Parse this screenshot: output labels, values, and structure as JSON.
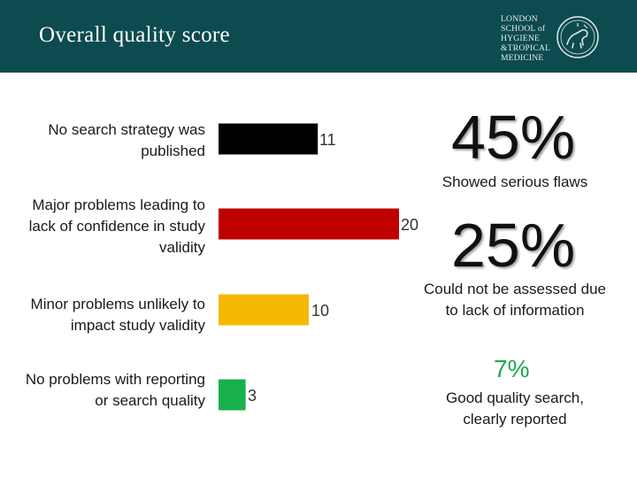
{
  "header": {
    "title": "Overall quality score",
    "logo_lines": [
      "LONDON",
      "SCHOOL of",
      "HYGIENE",
      "&TROPICAL",
      "MEDICINE"
    ]
  },
  "chart_data": {
    "type": "bar",
    "orientation": "horizontal",
    "categories": [
      "No search strategy was published",
      "Major problems leading to lack of confidence in study validity",
      "Minor problems unlikely to impact study validity",
      "No problems with reporting or search quality"
    ],
    "values": [
      11,
      20,
      10,
      3
    ],
    "colors": [
      "#000000",
      "#c00000",
      "#f5b800",
      "#17b04b"
    ],
    "title": "",
    "xlabel": "",
    "ylabel": "",
    "grid": false,
    "legend": "none",
    "data_labels": true
  },
  "stats": [
    {
      "value": "45%",
      "caption": "Showed serious flaws"
    },
    {
      "value": "25%",
      "caption": "Could not be assessed due to lack of information"
    },
    {
      "value": "7%",
      "caption": "Good quality search, clearly reported"
    }
  ],
  "colors": {
    "header_bg": "#0c4b4f",
    "stat_green": "#1fa84e"
  }
}
